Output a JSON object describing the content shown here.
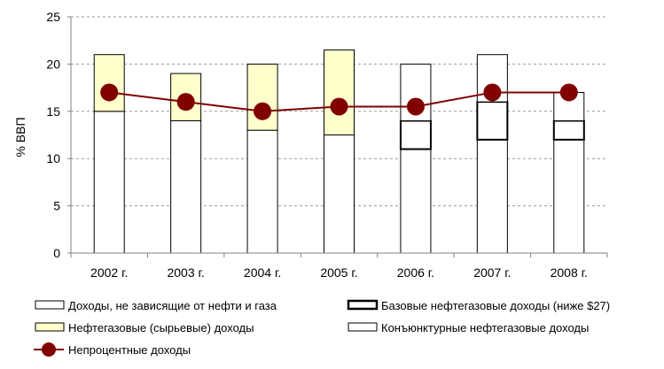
{
  "chart_data": {
    "type": "bar",
    "ylabel": "% ВВП",
    "ylim": [
      0,
      25
    ],
    "yticks": [
      0,
      5,
      10,
      15,
      20,
      25
    ],
    "grid": true,
    "legend_position": "bottom",
    "categories": [
      "2002 г.",
      "2003 г.",
      "2004 г.",
      "2005 г.",
      "2006 г.",
      "2007 г.",
      "2008 г."
    ],
    "series": [
      {
        "name": "Доходы, не зависящие от нефти и газа",
        "kind": "stacked-bar",
        "values": [
          15,
          14,
          13,
          12.5,
          11,
          12,
          12
        ],
        "fill": "#ffffff"
      },
      {
        "name": "Базовые нефтегазовые доходы (ниже $27)",
        "kind": "stacked-bar",
        "values": [
          0,
          0,
          0,
          0,
          3,
          4,
          2
        ],
        "fill": "#ffffff",
        "stroke_emphasis": true
      },
      {
        "name": "Нефтегазовые (сырьевые) доходы",
        "kind": "stacked-bar",
        "values": [
          6,
          5,
          7,
          9,
          0,
          0,
          0
        ],
        "fill": "#ffffcc"
      },
      {
        "name": "Конъюнктурные нефтегазовые доходы",
        "kind": "stacked-bar",
        "values": [
          0,
          0,
          0,
          0,
          6,
          5,
          3
        ],
        "fill": "#ffffff"
      },
      {
        "name": "Непроцентные доходы",
        "kind": "line",
        "values": [
          17,
          16,
          15,
          15.5,
          15.5,
          17,
          17
        ],
        "color": "#800000"
      }
    ]
  }
}
